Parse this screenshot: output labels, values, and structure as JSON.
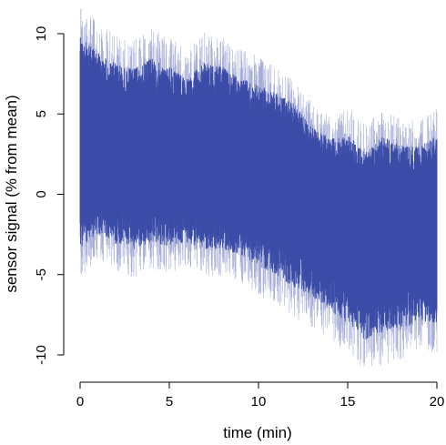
{
  "chart_data": {
    "type": "line",
    "title": "",
    "xlabel": "time (min)",
    "ylabel": "sensor signal (% from mean)",
    "xlim": [
      0,
      20
    ],
    "ylim": [
      -10,
      10
    ],
    "x_ticks": [
      0,
      5,
      10,
      15,
      20
    ],
    "x_tick_labels": [
      "0",
      "5",
      "10",
      "15",
      "20"
    ],
    "y_ticks": [
      -10,
      -5,
      0,
      5,
      10
    ],
    "y_tick_labels": [
      "-10",
      "-5",
      "0",
      "5",
      "10"
    ],
    "grid": false,
    "legend": "none",
    "series_color": "#3a4ba8",
    "envelope": {
      "x": [
        0,
        1,
        2,
        3,
        4,
        5,
        6,
        7,
        8,
        9,
        10,
        11,
        12,
        13,
        14,
        15,
        16,
        17,
        18,
        19,
        20
      ],
      "center": [
        3.0,
        3.2,
        2.9,
        2.7,
        2.8,
        2.4,
        2.2,
        2.3,
        2.5,
        1.9,
        1.6,
        1.3,
        1.1,
        0.0,
        -0.8,
        -1.4,
        -2.1,
        -1.6,
        -1.8,
        -1.9,
        -1.7
      ],
      "upper": [
        10.0,
        9.0,
        8.3,
        8.0,
        8.7,
        8.1,
        7.4,
        8.4,
        8.1,
        7.4,
        7.0,
        6.4,
        5.8,
        4.4,
        3.6,
        3.9,
        2.8,
        3.8,
        3.2,
        3.1,
        3.8
      ],
      "lower": [
        -3.6,
        -2.6,
        -3.3,
        -3.7,
        -3.2,
        -3.4,
        -3.2,
        -3.6,
        -3.6,
        -4.0,
        -4.7,
        -5.3,
        -6.0,
        -6.6,
        -7.4,
        -8.3,
        -9.3,
        -8.8,
        -8.6,
        -8.1,
        -8.3
      ],
      "peak_max": 11.9,
      "peak_min": -10.7
    }
  }
}
